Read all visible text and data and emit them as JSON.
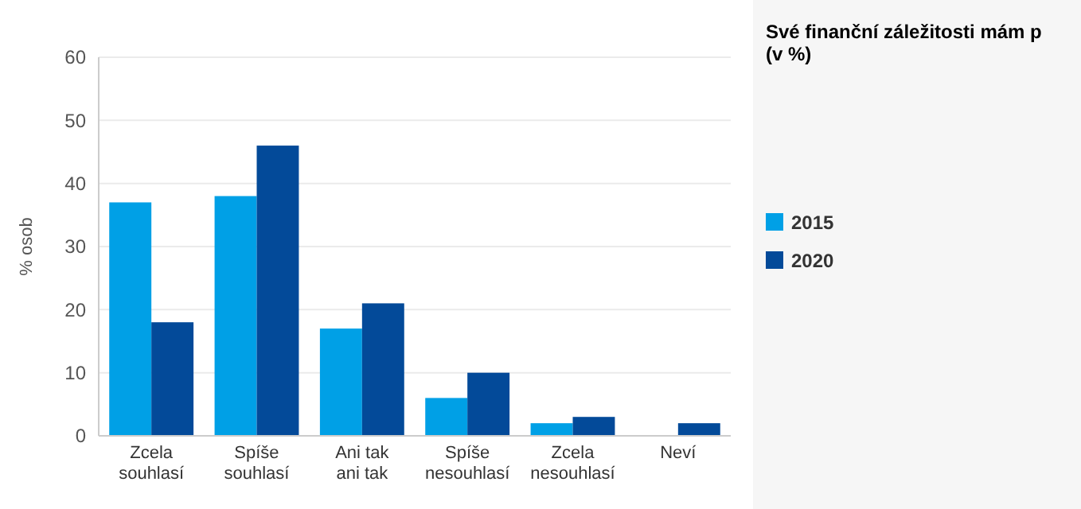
{
  "chart_data": {
    "type": "bar",
    "title": "Své finanční záležitosti mám p\n(v %)",
    "ylabel": "% osob",
    "categories": [
      "Zcela souhlasí",
      "Spíše souhlasí",
      "Ani tak ani tak",
      "Spíše nesouhlasí",
      "Zcela nesouhlasí",
      "Neví"
    ],
    "series": [
      {
        "name": "2015",
        "color": "#00a0e6",
        "values": [
          37,
          38,
          17,
          6,
          2,
          null
        ]
      },
      {
        "name": "2020",
        "color": "#034a99",
        "values": [
          18,
          46,
          21,
          10,
          3,
          2
        ]
      }
    ],
    "ylim": [
      0,
      60
    ],
    "yticks": [
      0,
      10,
      20,
      30,
      40,
      50,
      60
    ],
    "grid": "y",
    "legend": "right"
  }
}
